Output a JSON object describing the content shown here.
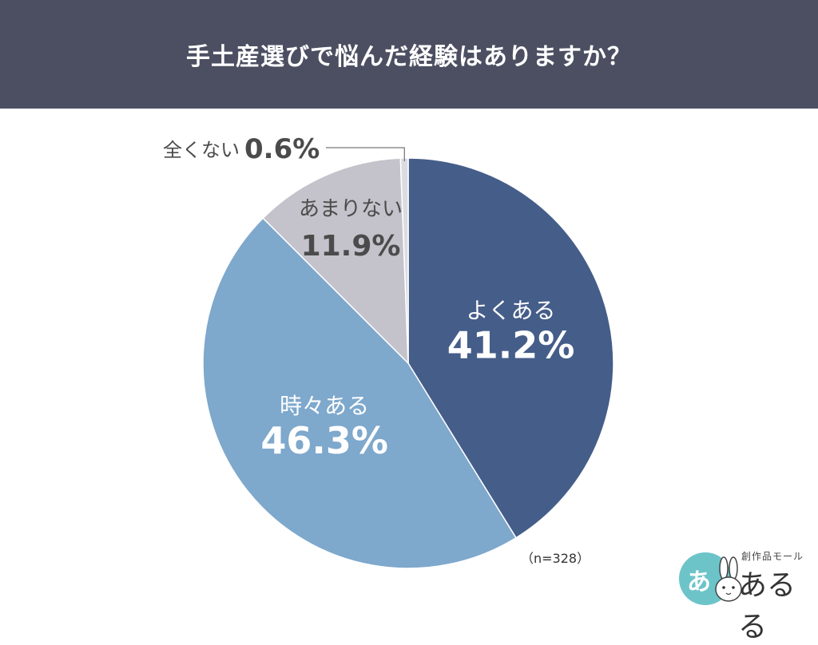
{
  "header": {
    "title": "手土産選びで悩んだ経験はありますか？"
  },
  "note": "（n=328）",
  "logo": {
    "circle_text": "あ",
    "sub_text": "創作品モール",
    "name": "あるる"
  },
  "colors": {
    "header_bg": "#4b4f61",
    "yoku_aru": "#455d89",
    "tokidoki_aru": "#7ea8cc",
    "amari_nai": "#c4c2ca",
    "mattaku_nai": "#dcdbe2",
    "leader_line": "#555555",
    "logo_teal": "#6cc4c9"
  },
  "chart_data": {
    "type": "pie",
    "title": "手土産選びで悩んだ経験はありますか？",
    "n": 328,
    "slices": [
      {
        "label": "よくある",
        "value": 41.2,
        "display": "41.2%",
        "color": "#455d89"
      },
      {
        "label": "時々ある",
        "value": 46.3,
        "display": "46.3%",
        "color": "#7ea8cc"
      },
      {
        "label": "あまりない",
        "value": 11.9,
        "display": "11.9%",
        "color": "#c4c2ca"
      },
      {
        "label": "全くない",
        "value": 0.6,
        "display": "0.6%",
        "color": "#dcdbe2"
      }
    ],
    "start": "12 o'clock",
    "direction": "clockwise"
  }
}
